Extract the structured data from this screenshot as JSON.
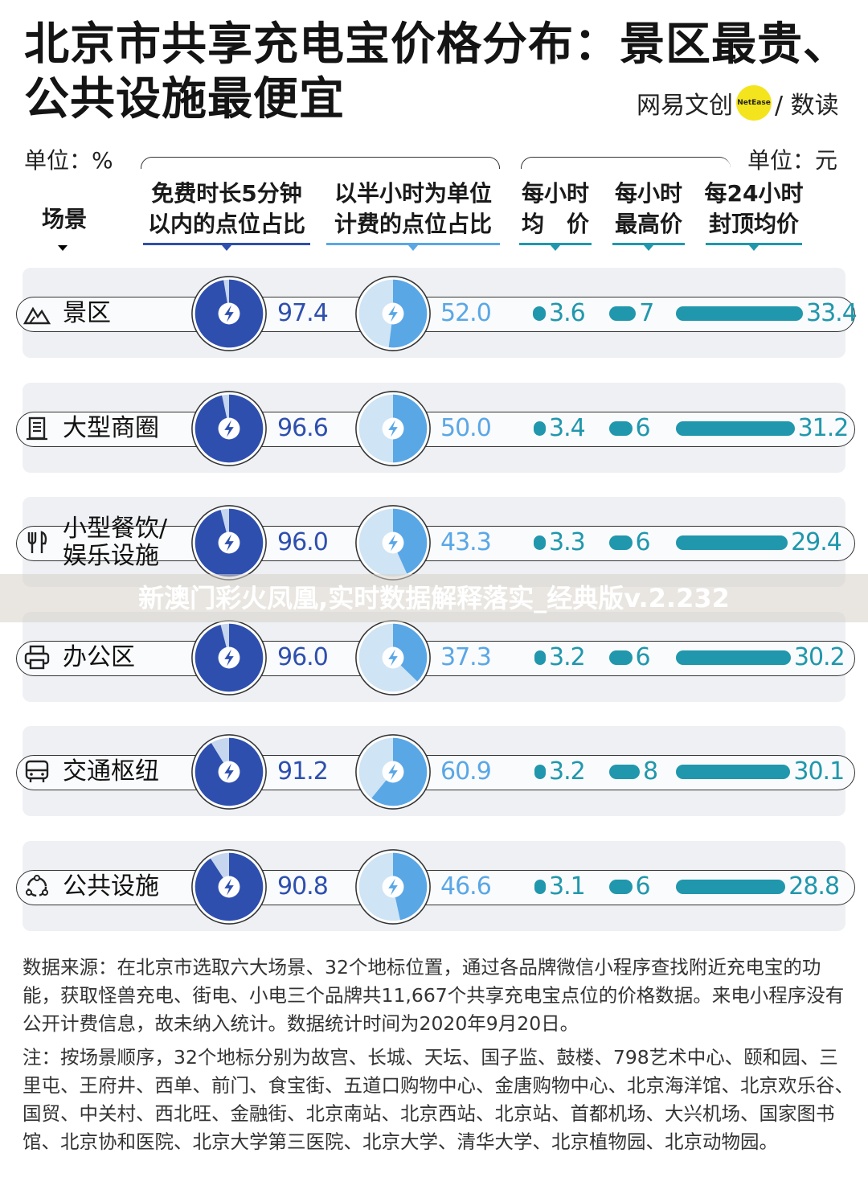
{
  "header": {
    "title": "北京市共享充电宝价格分布：景区最贵、公共设施最便宜",
    "brand_left": "网易文创",
    "brand_dot": "NetEase",
    "brand_right": "/ 数读"
  },
  "units": {
    "left": "单位：%",
    "right": "单位：元"
  },
  "columns": {
    "scene": "场景",
    "free5": "免费时长5分钟\n以内的点位占比",
    "half_hour": "以半小时为单位\n计费的点位占比",
    "avg_hour": "每小时\n均　价",
    "max_hour": "每小时\n最高价",
    "cap24": "每24小时\n封顶均价"
  },
  "colors": {
    "dark_blue": "#2e4fae",
    "mid_blue": "#5aa7e6",
    "light_blue": "#cfe4f4",
    "light_navy": "#c7d6ef",
    "teal": "#2097ac"
  },
  "chart_data": {
    "type": "table",
    "title": "北京市共享充电宝价格分布：景区最贵、公共设施最便宜",
    "rows": [
      {
        "scene": "景区",
        "icon": "mountain-icon",
        "free5": "97.4",
        "half_hour": "52.0",
        "avg_hour": "3.6",
        "max_hour": "7",
        "cap24": "33.4"
      },
      {
        "scene": "大型商圈",
        "icon": "mall-icon",
        "free5": "96.6",
        "half_hour": "50.0",
        "avg_hour": "3.4",
        "max_hour": "6",
        "cap24": "31.2"
      },
      {
        "scene": "小型餐饮/\n娱乐设施",
        "icon": "fork-knife-icon",
        "free5": "96.0",
        "half_hour": "43.3",
        "avg_hour": "3.3",
        "max_hour": "6",
        "cap24": "29.4"
      },
      {
        "scene": "办公区",
        "icon": "printer-icon",
        "free5": "96.0",
        "half_hour": "37.3",
        "avg_hour": "3.2",
        "max_hour": "6",
        "cap24": "30.2"
      },
      {
        "scene": "交通枢纽",
        "icon": "bus-icon",
        "free5": "91.2",
        "half_hour": "60.9",
        "avg_hour": "3.2",
        "max_hour": "8",
        "cap24": "30.1"
      },
      {
        "scene": "公共设施",
        "icon": "community-icon",
        "free5": "90.8",
        "half_hour": "46.6",
        "avg_hour": "3.1",
        "max_hour": "6",
        "cap24": "28.8"
      }
    ]
  },
  "footer": {
    "source": "数据来源：在北京市选取六大场景、32个地标位置，通过各品牌微信小程序查找附近充电宝的功能，获取怪兽充电、街电、小电三个品牌共11,667个共享充电宝点位的价格数据。来电小程序没有公开计费信息，故未纳入统计。数据统计时间为2020年9月20日。",
    "note": "注：按场景顺序，32个地标分别为故宫、长城、天坛、国子监、鼓楼、798艺术中心、颐和园、三里屯、王府井、西单、前门、食宝街、五道口购物中心、金唐购物中心、北京海洋馆、北京欢乐谷、国贸、中关村、西北旺、金融街、北京南站、北京西站、北京站、首都机场、大兴机场、国家图书馆、北京协和医院、北京大学第三医院、北京大学、清华大学、北京植物园、北京动物园。"
  },
  "watermark": "新澳门彩火凤凰,实时数据解释落实_经典版v.2.232"
}
